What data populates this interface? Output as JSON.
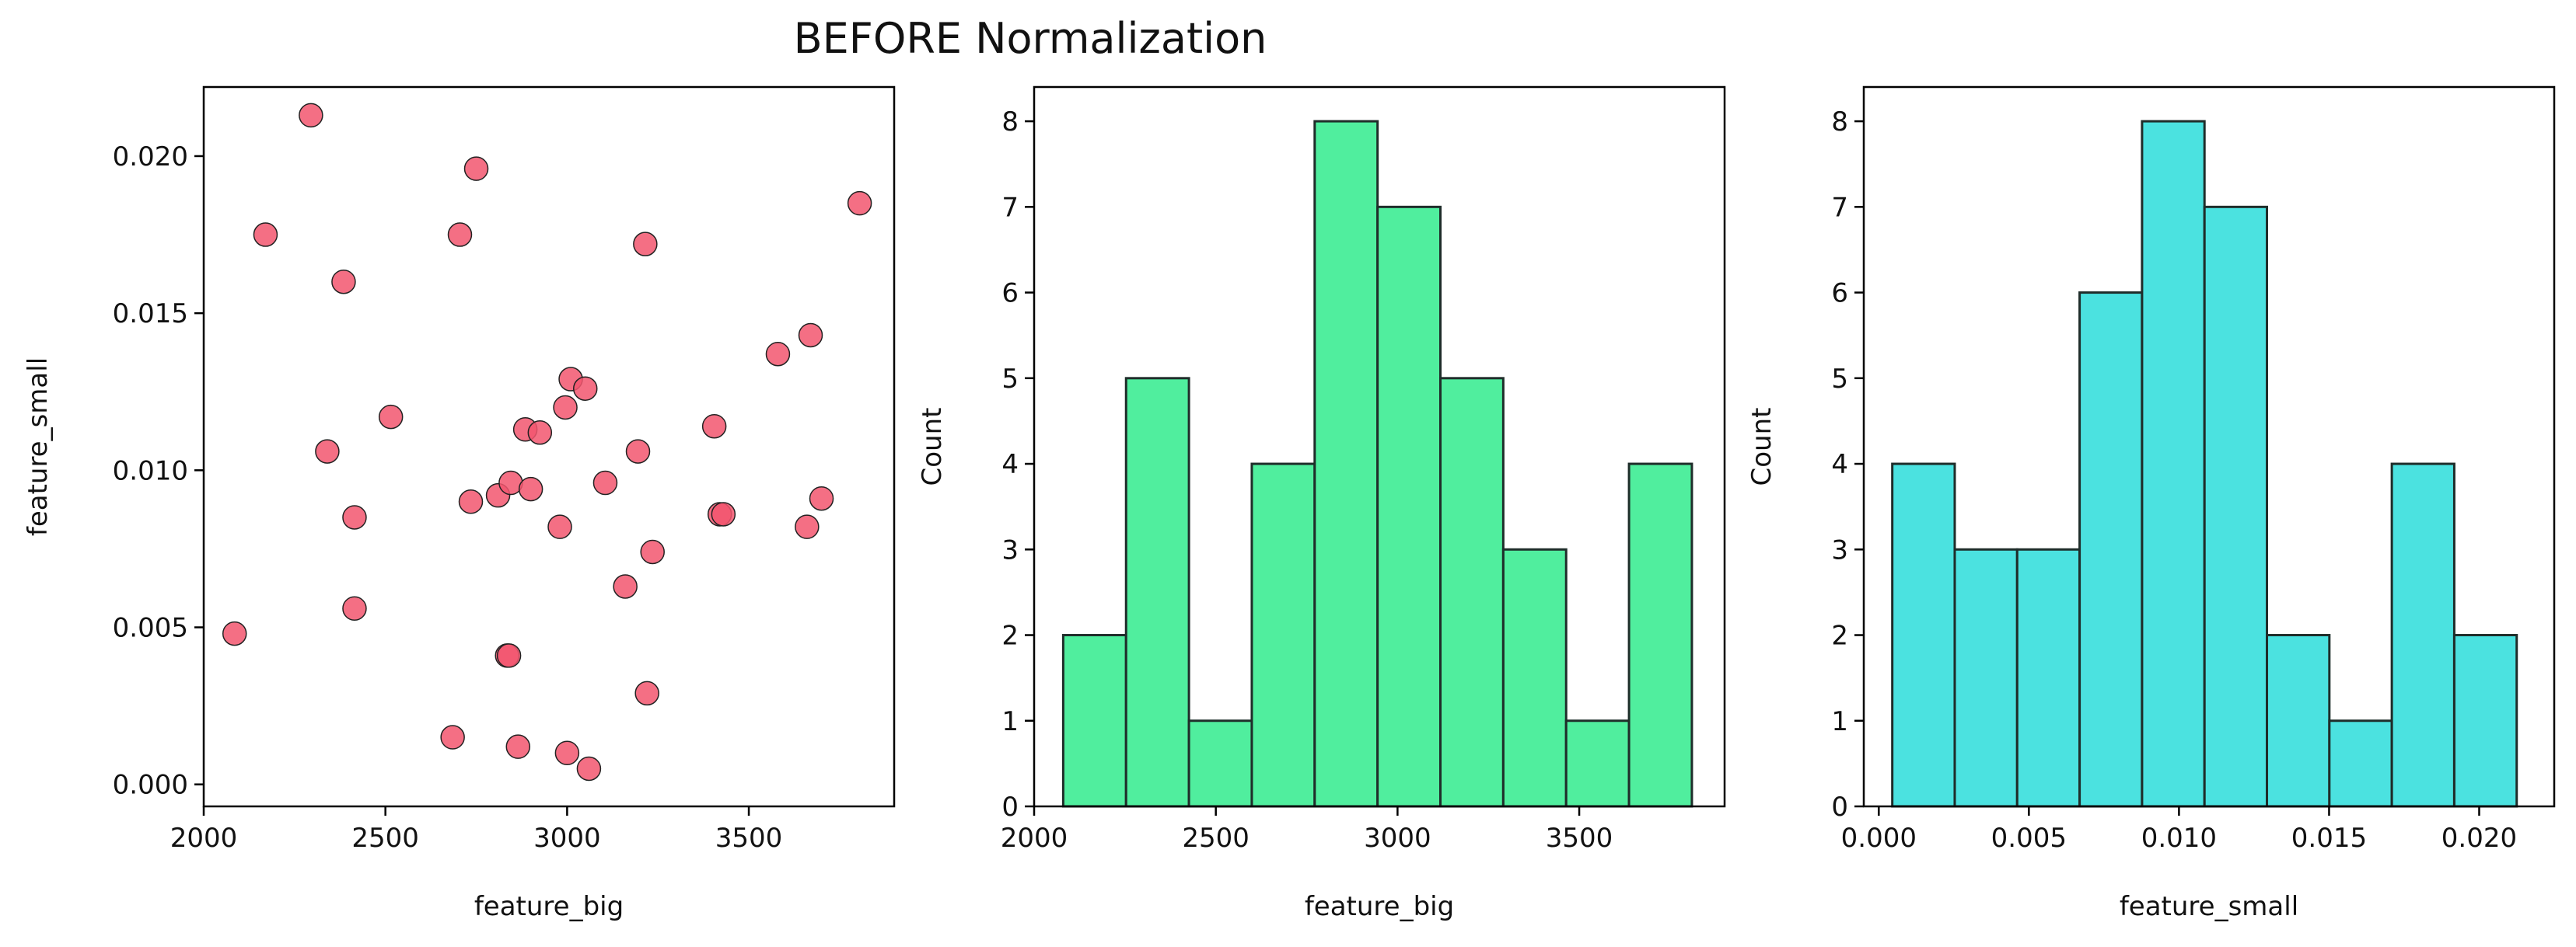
{
  "figure": {
    "title": "BEFORE Normalization"
  },
  "chart_data": [
    {
      "type": "scatter",
      "xlabel": "feature_big",
      "ylabel": "feature_small",
      "xlim": [
        2000,
        3900
      ],
      "ylim": [
        -0.0007,
        0.0222
      ],
      "xticks": [
        "2000",
        "2500",
        "3000",
        "3500"
      ],
      "yticks": [
        "0.000",
        "0.005",
        "0.010",
        "0.015",
        "0.020"
      ],
      "color": "#f2566f",
      "edgecolor": "#222222",
      "points": [
        [
          2085,
          0.0048
        ],
        [
          2170,
          0.0175
        ],
        [
          2295,
          0.0213
        ],
        [
          2340,
          0.0106
        ],
        [
          2385,
          0.016
        ],
        [
          2415,
          0.0085
        ],
        [
          2415,
          0.0056
        ],
        [
          2515,
          0.0117
        ],
        [
          2685,
          0.0015
        ],
        [
          2705,
          0.0175
        ],
        [
          2735,
          0.009
        ],
        [
          2750,
          0.0196
        ],
        [
          2810,
          0.0092
        ],
        [
          2835,
          0.0041
        ],
        [
          2840,
          0.0041
        ],
        [
          2845,
          0.0096
        ],
        [
          2865,
          0.0012
        ],
        [
          2885,
          0.0113
        ],
        [
          2900,
          0.0094
        ],
        [
          2925,
          0.0112
        ],
        [
          2980,
          0.0082
        ],
        [
          2995,
          0.012
        ],
        [
          3000,
          0.001
        ],
        [
          3010,
          0.0129
        ],
        [
          3050,
          0.0126
        ],
        [
          3060,
          0.0005
        ],
        [
          3105,
          0.0096
        ],
        [
          3160,
          0.0063
        ],
        [
          3195,
          0.0106
        ],
        [
          3215,
          0.0172
        ],
        [
          3220,
          0.0029
        ],
        [
          3235,
          0.0074
        ],
        [
          3405,
          0.0114
        ],
        [
          3420,
          0.0086
        ],
        [
          3430,
          0.0086
        ],
        [
          3580,
          0.0137
        ],
        [
          3660,
          0.0082
        ],
        [
          3670,
          0.0143
        ],
        [
          3700,
          0.0091
        ],
        [
          3805,
          0.0185
        ]
      ]
    },
    {
      "type": "histogram",
      "xlabel": "feature_big",
      "ylabel": "Count",
      "xlim": [
        2000,
        3900
      ],
      "ylim": [
        0,
        8.4
      ],
      "xticks": [
        "2000",
        "2500",
        "3000",
        "3500"
      ],
      "yticks": [
        "0",
        "1",
        "2",
        "3",
        "4",
        "5",
        "6",
        "7",
        "8"
      ],
      "color": "#50ee9e",
      "bin_edges": [
        2080,
        2253,
        2426,
        2599,
        2772,
        2945,
        3118,
        3291,
        3464,
        3637,
        3810
      ],
      "counts": [
        2,
        5,
        1,
        4,
        8,
        7,
        5,
        3,
        1,
        4
      ]
    },
    {
      "type": "histogram",
      "xlabel": "feature_small",
      "ylabel": "Count",
      "xlim": [
        -0.0005,
        0.0225
      ],
      "ylim": [
        0,
        8.4
      ],
      "xticks": [
        "0.000",
        "0.005",
        "0.010",
        "0.015",
        "0.020"
      ],
      "yticks": [
        "0",
        "1",
        "2",
        "3",
        "4",
        "5",
        "6",
        "7",
        "8"
      ],
      "color": "#4be2e0",
      "bin_edges": [
        0.00045,
        0.00253,
        0.00461,
        0.00669,
        0.00877,
        0.01085,
        0.01293,
        0.01501,
        0.01709,
        0.01917,
        0.02125
      ],
      "counts": [
        4,
        3,
        3,
        6,
        8,
        7,
        2,
        1,
        4,
        2
      ]
    }
  ]
}
